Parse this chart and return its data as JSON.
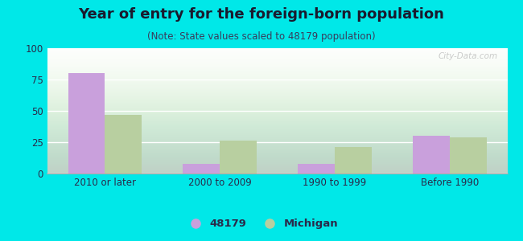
{
  "title": "Year of entry for the foreign-born population",
  "subtitle": "(Note: State values scaled to 48179 population)",
  "categories": [
    "2010 or later",
    "2000 to 2009",
    "1990 to 1999",
    "Before 1990"
  ],
  "series_48179": [
    80,
    8,
    8,
    30
  ],
  "series_michigan": [
    47,
    26,
    21,
    29
  ],
  "bar_color_48179": "#c9a0dc",
  "bar_color_michigan": "#b8cfa0",
  "ylim": [
    0,
    100
  ],
  "yticks": [
    0,
    25,
    50,
    75,
    100
  ],
  "background_outer": "#00e8e8",
  "background_inner_top": "#e8f5e8",
  "background_inner_bottom": "#d0f0d0",
  "legend_label_1": "48179",
  "legend_label_2": "Michigan",
  "title_fontsize": 13,
  "subtitle_fontsize": 8.5,
  "tick_fontsize": 8.5,
  "legend_fontsize": 9.5,
  "bar_width": 0.32,
  "title_color": "#1a1a2e",
  "subtitle_color": "#3a3a5a",
  "tick_color": "#2a2a4a"
}
